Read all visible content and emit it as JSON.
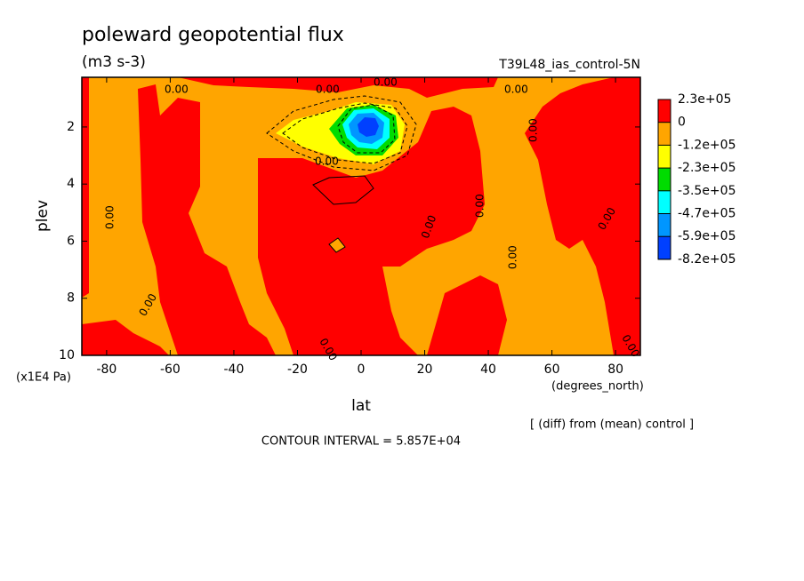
{
  "chart_data": {
    "type": "contour",
    "title": "poleward geopotential flux",
    "subtitle": "(m3 s-3)",
    "run_label": "T39L48_ias_control-5N",
    "x_label": "lat",
    "x_unit": "(degrees_north)",
    "y_label": "plev",
    "y_unit": "(x1E4 Pa)",
    "note": "[ (diff) from (mean) control ]",
    "contour_interval": "CONTOUR INTERVAL = 5.857E+04",
    "contour_label": "0.00",
    "xlim": [
      -87.8,
      87.8
    ],
    "xticks": [
      -80,
      -60,
      -40,
      -20,
      0,
      20,
      40,
      60,
      80
    ],
    "ylim": [
      10,
      0.26
    ],
    "yticks": [
      2,
      4,
      6,
      8,
      10
    ],
    "levels": [
      {
        "value": 230000,
        "label": "2.3e+05"
      },
      0,
      {
        "value": -120000,
        "label": "-1.2e+05"
      },
      {
        "value": -230000,
        "label": "-2.3e+05"
      },
      {
        "value": -350000,
        "label": "-3.5e+05"
      },
      {
        "value": -470000,
        "label": "-4.7e+05"
      },
      {
        "value": -590000,
        "label": "-5.9e+05"
      },
      {
        "value": -820000,
        "label": "-8.2e+05"
      }
    ],
    "colors": [
      "#ff0000",
      "#ffa500",
      "#ffff00",
      "#00dc00",
      "#00ffff",
      "#0096ff",
      "#0040ff"
    ]
  }
}
